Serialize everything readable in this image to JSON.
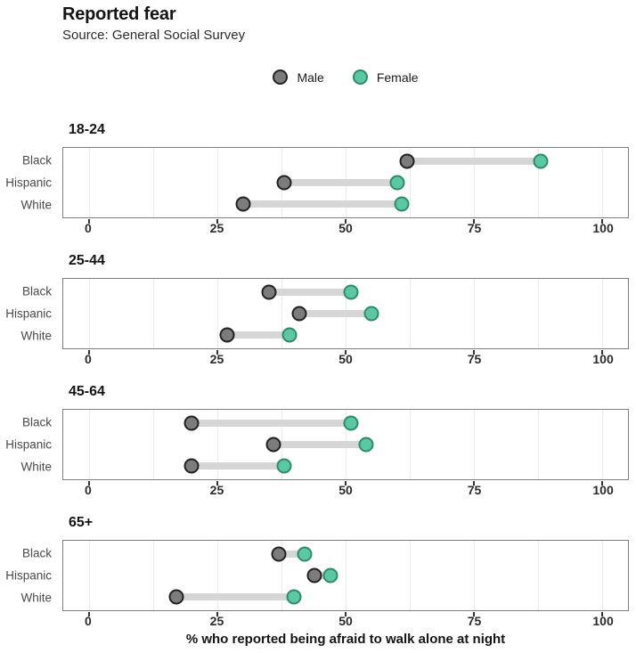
{
  "header": {
    "title": "Reported fear",
    "subtitle": "Source: General Social Survey"
  },
  "chart_data": {
    "type": "dumbbell",
    "title": "Reported fear",
    "subtitle": "Source: General Social Survey",
    "xlabel": "% who reported being afraid to walk alone at night",
    "xlim": [
      -5,
      105
    ],
    "xticks": [
      0,
      25,
      50,
      75,
      100
    ],
    "minor_grid_step": 12.5,
    "grid": true,
    "legend_position": "top-center",
    "series": [
      {
        "name": "Male",
        "fill": "#7c7c7c",
        "stroke": "#222222"
      },
      {
        "name": "Female",
        "fill": "#5bc8a2",
        "stroke": "#2e8b6e"
      }
    ],
    "categories": [
      "Black",
      "Hispanic",
      "White"
    ],
    "facets": [
      {
        "label": "18-24",
        "rows": [
          {
            "category": "Black",
            "values": [
              62,
              88
            ]
          },
          {
            "category": "Hispanic",
            "values": [
              38,
              60
            ]
          },
          {
            "category": "White",
            "values": [
              30,
              61
            ]
          }
        ]
      },
      {
        "label": "25-44",
        "rows": [
          {
            "category": "Black",
            "values": [
              35,
              51
            ]
          },
          {
            "category": "Hispanic",
            "values": [
              41,
              55
            ]
          },
          {
            "category": "White",
            "values": [
              27,
              39
            ]
          }
        ]
      },
      {
        "label": "45-64",
        "rows": [
          {
            "category": "Black",
            "values": [
              20,
              51
            ]
          },
          {
            "category": "Hispanic",
            "values": [
              36,
              54
            ]
          },
          {
            "category": "White",
            "values": [
              20,
              38
            ]
          }
        ]
      },
      {
        "label": "65+",
        "rows": [
          {
            "category": "Black",
            "values": [
              37,
              42
            ]
          },
          {
            "category": "Hispanic",
            "values": [
              44,
              47
            ]
          },
          {
            "category": "White",
            "values": [
              17,
              40
            ]
          }
        ]
      }
    ],
    "colors": {
      "segment": "#d6d6d6",
      "panel_border": "#7f7f7f",
      "gridline": "#ebebeb",
      "tick": "#333333"
    }
  }
}
